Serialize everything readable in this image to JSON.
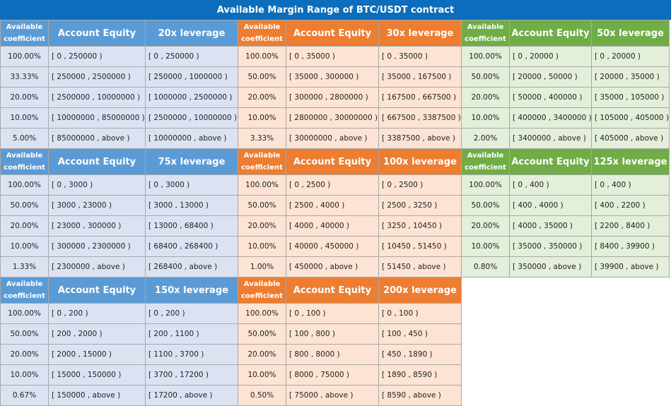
{
  "title": "Available Margin Range of BTC/USDT contract",
  "colors": {
    "title_bg": "#0b6dbb",
    "blue_header": "#5b9bd5",
    "blue_cell": "#dbe3f3",
    "orange_header": "#ed7d31",
    "orange_cell": "#fde3d3",
    "green_header": "#70ad47",
    "green_cell": "#e3efd9"
  },
  "headers": {
    "coef1": "Available",
    "coef2": "coefficient",
    "equity": "Account Equity"
  },
  "panels": [
    {
      "leverage": "20x leverage",
      "rows": [
        [
          "100.00%",
          "[ 0 , 250000 )",
          "[ 0 , 250000 )"
        ],
        [
          "33.33%",
          "[ 250000 , 2500000 )",
          "[ 250000 , 1000000 )"
        ],
        [
          "20.00%",
          "[ 2500000 , 10000000 )",
          "[ 1000000 , 2500000 )"
        ],
        [
          "10.00%",
          "[ 10000000 , 85000000 )",
          "[ 2500000 , 10000000 )"
        ],
        [
          "5.00%",
          "[ 85000000 , above )",
          "[ 10000000 , above )"
        ]
      ]
    },
    {
      "leverage": "30x leverage",
      "rows": [
        [
          "100.00%",
          "[ 0 , 35000 )",
          "[ 0 , 35000 )"
        ],
        [
          "50.00%",
          "[ 35000 , 300000 )",
          "[ 35000 , 167500 )"
        ],
        [
          "20.00%",
          "[ 300000 , 2800000 )",
          "[ 167500 , 667500 )"
        ],
        [
          "10.00%",
          "[ 2800000 , 30000000 )",
          "[ 667500 , 3387500 )"
        ],
        [
          "3.33%",
          "[ 30000000 , above )",
          "[ 3387500 , above )"
        ]
      ]
    },
    {
      "leverage": "50x leverage",
      "rows": [
        [
          "100.00%",
          "[ 0 , 20000 )",
          "[ 0 , 20000 )"
        ],
        [
          "50.00%",
          "[ 20000 , 50000 )",
          "[ 20000 , 35000 )"
        ],
        [
          "20.00%",
          "[ 50000 , 400000 )",
          "[ 35000 , 105000 )"
        ],
        [
          "10.00%",
          "[ 400000 , 3400000 )",
          "[ 105000 , 405000 )"
        ],
        [
          "2.00%",
          "[ 3400000 , above )",
          "[ 405000 , above )"
        ]
      ]
    },
    {
      "leverage": "75x leverage",
      "rows": [
        [
          "100.00%",
          "[ 0 , 3000 )",
          "[ 0 , 3000 )"
        ],
        [
          "50.00%",
          "[ 3000 , 23000 )",
          "[ 3000 , 13000 )"
        ],
        [
          "20.00%",
          "[ 23000 , 300000 )",
          "[ 13000 , 68400 )"
        ],
        [
          "10.00%",
          "[ 300000 , 2300000 )",
          "[ 68400 , 268400 )"
        ],
        [
          "1.33%",
          "[ 2300000 , above )",
          "[ 268400 , above )"
        ]
      ]
    },
    {
      "leverage": "100x leverage",
      "rows": [
        [
          "100.00%",
          "[ 0 , 2500 )",
          "[ 0 , 2500 )"
        ],
        [
          "50.00%",
          "[ 2500 , 4000 )",
          "[ 2500 , 3250 )"
        ],
        [
          "20.00%",
          "[ 4000 , 40000 )",
          "[ 3250 , 10450 )"
        ],
        [
          "10.00%",
          "[ 40000 , 450000 )",
          "[ 10450 , 51450 )"
        ],
        [
          "1.00%",
          "[ 450000 , above )",
          "[ 51450 , above )"
        ]
      ]
    },
    {
      "leverage": "125x leverage",
      "rows": [
        [
          "100.00%",
          "[ 0 , 400 )",
          "[ 0 , 400 )"
        ],
        [
          "50.00%",
          "[ 400 , 4000 )",
          "[ 400 , 2200 )"
        ],
        [
          "20.00%",
          "[ 4000 , 35000 )",
          "[ 2200 , 8400 )"
        ],
        [
          "10.00%",
          "[ 35000 , 350000 )",
          "[ 8400 , 39900 )"
        ],
        [
          "0.80%",
          "[ 350000 , above )",
          "[ 39900 , above )"
        ]
      ]
    },
    {
      "leverage": "150x leverage",
      "rows": [
        [
          "100.00%",
          "[ 0 , 200 )",
          "[ 0 , 200 )"
        ],
        [
          "50.00%",
          "[ 200 , 2000 )",
          "[ 200 , 1100 )"
        ],
        [
          "20.00%",
          "[ 2000 , 15000 )",
          "[ 1100 , 3700 )"
        ],
        [
          "10.00%",
          "[ 15000 , 150000 )",
          "[ 3700 , 17200 )"
        ],
        [
          "0.67%",
          "[ 150000 , above )",
          "[ 17200 , above )"
        ]
      ]
    },
    {
      "leverage": "200x leverage",
      "rows": [
        [
          "100.00%",
          "[ 0 , 100 )",
          "[ 0 , 100 )"
        ],
        [
          "50.00%",
          "[ 100 , 800 )",
          "[ 100 , 450 )"
        ],
        [
          "20.00%",
          "[ 800 , 8000 )",
          "[ 450 , 1890 )"
        ],
        [
          "10.00%",
          "[ 8000 , 75000 )",
          "[ 1890 , 8590 )"
        ],
        [
          "0.50%",
          "[ 75000 , above )",
          "[ 8590 , above )"
        ]
      ]
    }
  ]
}
